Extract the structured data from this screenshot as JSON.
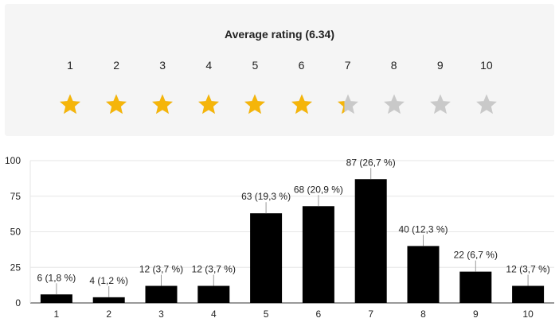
{
  "rating": {
    "title": "Average rating (6.34)",
    "average": 6.34,
    "scale": [
      "1",
      "2",
      "3",
      "4",
      "5",
      "6",
      "7",
      "8",
      "9",
      "10"
    ],
    "star_fill_color": "#f5b50a",
    "star_empty_color": "#c9c9c9"
  },
  "chart_data": {
    "type": "bar",
    "categories": [
      "1",
      "2",
      "3",
      "4",
      "5",
      "6",
      "7",
      "8",
      "9",
      "10"
    ],
    "values": [
      6,
      4,
      12,
      12,
      63,
      68,
      87,
      40,
      22,
      12
    ],
    "data_labels": [
      "6 (1,8 %)",
      "4 (1,2 %)",
      "12 (3,7 %)",
      "12 (3,7 %)",
      "63 (19,3 %)",
      "68 (20,9 %)",
      "87 (26,7 %)",
      "40 (12,3 %)",
      "22 (6,7 %)",
      "12 (3,7 %)"
    ],
    "yticks": [
      "0",
      "25",
      "50",
      "75",
      "100"
    ],
    "ylim": [
      0,
      100
    ],
    "grid": true,
    "bar_color": "#000000"
  }
}
